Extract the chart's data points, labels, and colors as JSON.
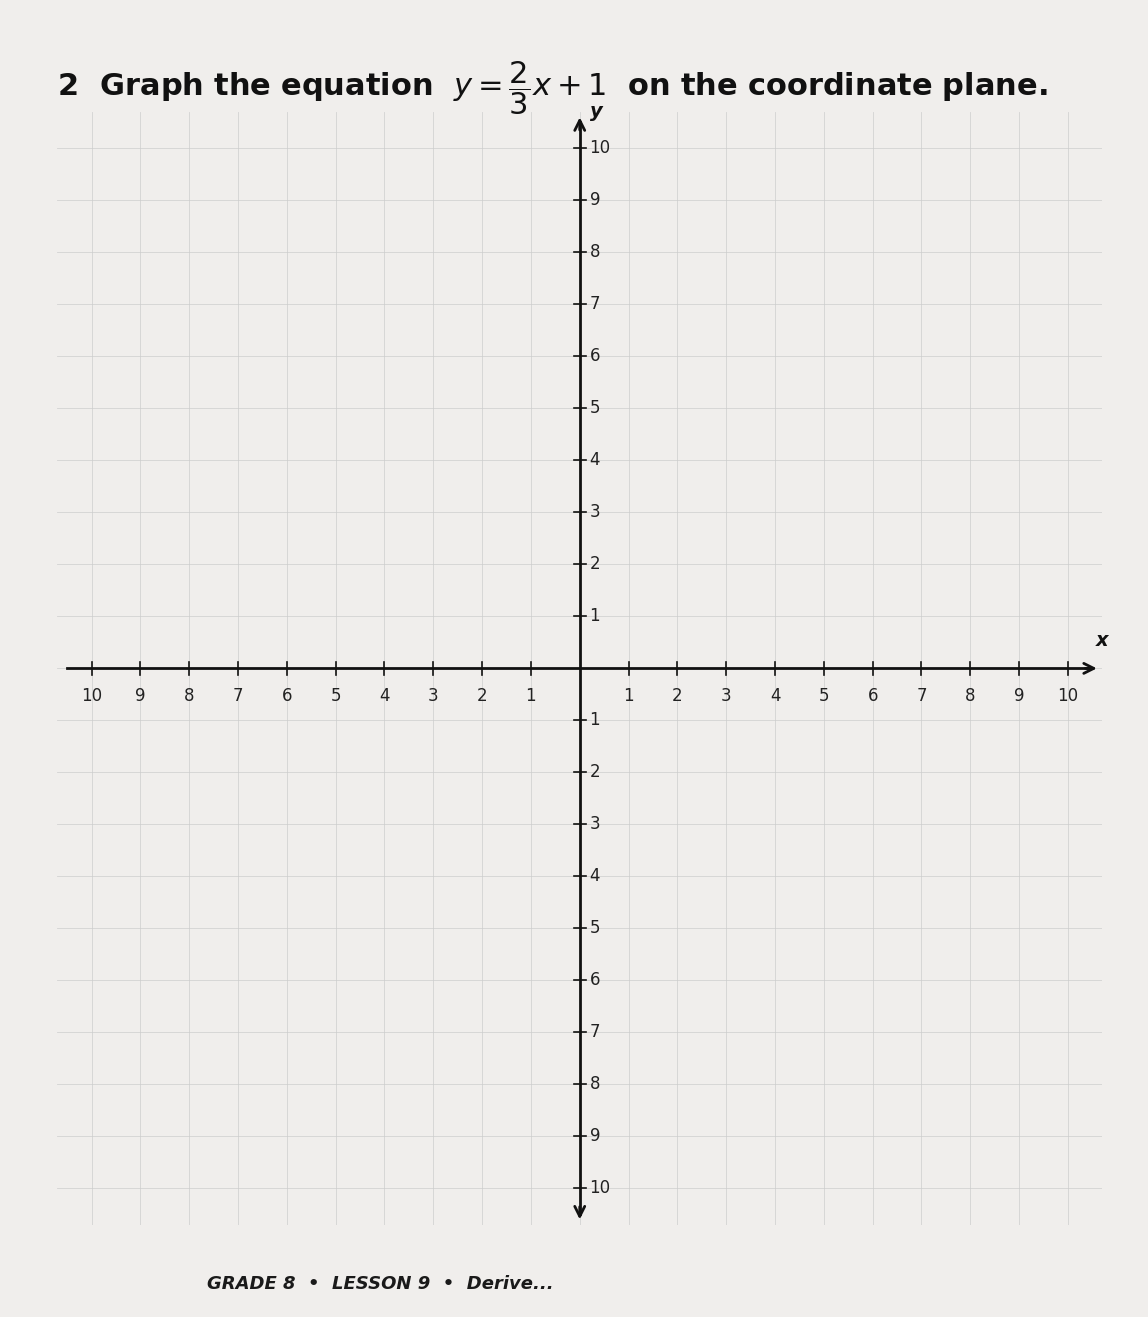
{
  "title_line1": "2   Graph the equation ",
  "title_equation": "$y = \\dfrac{2}{3}x + 1$",
  "title_line2": " on the coordinate plane.",
  "title_fontsize": 22,
  "footer_text": "GRADE 8  •  LESSON 9  •  Derive...",
  "footer_fontsize": 13,
  "xlim": [
    -10,
    10
  ],
  "ylim": [
    -10,
    10
  ],
  "axis_label_x": "x",
  "axis_label_y": "y",
  "background_color": "#f0eeec",
  "grid_color": "#cccccc",
  "axis_color": "#111111",
  "tick_label_fontsize": 12,
  "title_color": "#111111"
}
